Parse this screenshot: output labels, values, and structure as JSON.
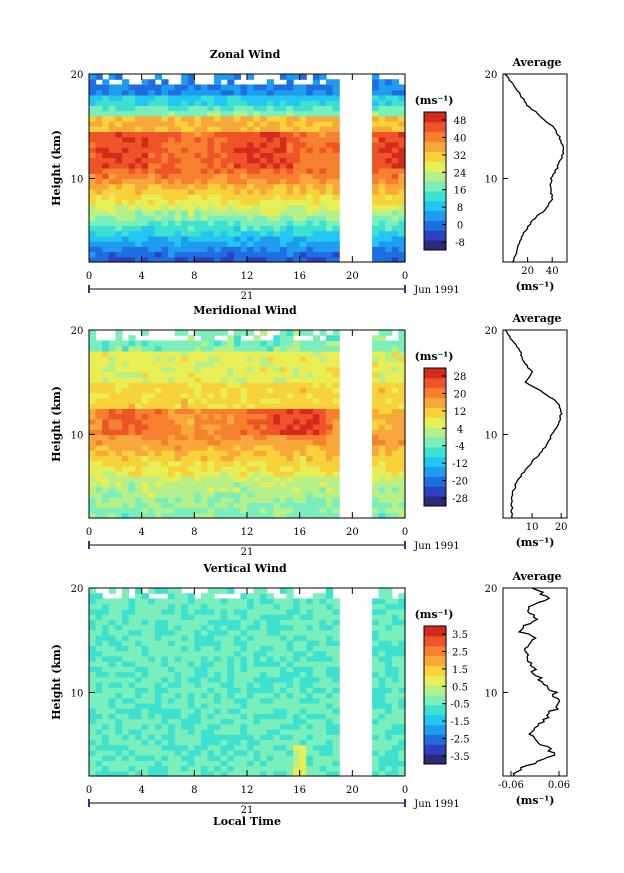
{
  "figure": {
    "date_label": "Jun 1991",
    "day_label": "21",
    "x_axis_label": "Local Time",
    "x_ticks": [
      "0",
      "4",
      "8",
      "12",
      "16",
      "20",
      "0"
    ],
    "y_axis_label": "Height (km)",
    "y_ticks": [
      "10",
      "20"
    ],
    "units": "(ms⁻¹)",
    "average_title": "Average"
  },
  "chart_data": [
    {
      "type": "heatmap",
      "title": "Zonal Wind",
      "ylabel": "Height (km)",
      "xlabel": "",
      "x_range_hours": [
        0,
        24
      ],
      "y_range_km": [
        2,
        20
      ],
      "data_gap_hours": [
        18.8,
        21.5
      ],
      "colorbar": {
        "label": "(ms⁻¹)",
        "ticks": [
          "48",
          "40",
          "32",
          "24",
          "16",
          "8",
          "0",
          "-8"
        ],
        "min": -12,
        "max": 52
      },
      "average_profile": {
        "title": "Average",
        "x_ticks": [
          "20",
          "40"
        ],
        "x_range": [
          0,
          52
        ],
        "height_km": [
          2,
          3,
          4,
          5,
          6,
          7,
          8,
          9,
          10,
          11,
          12,
          13,
          14,
          15,
          16,
          17,
          18,
          19,
          20
        ],
        "values": [
          8,
          11,
          14,
          18,
          24,
          34,
          40,
          39,
          39,
          44,
          48,
          49,
          46,
          40,
          30,
          20,
          14,
          8,
          2
        ]
      }
    },
    {
      "type": "heatmap",
      "title": "Meridional Wind",
      "ylabel": "Height (km)",
      "xlabel": "",
      "x_range_hours": [
        0,
        24
      ],
      "y_range_km": [
        2,
        20
      ],
      "data_gap_hours": [
        18.8,
        21.5
      ],
      "colorbar": {
        "label": "(ms⁻¹)",
        "ticks": [
          "28",
          "20",
          "12",
          "4",
          "-4",
          "-12",
          "-20",
          "-28"
        ],
        "min": -30,
        "max": 30
      },
      "average_profile": {
        "title": "Average",
        "x_ticks": [
          "10",
          "20"
        ],
        "x_range": [
          0,
          22
        ],
        "height_km": [
          2,
          3,
          4,
          5,
          6,
          7,
          8,
          9,
          10,
          11,
          12,
          13,
          14,
          15,
          16,
          17,
          18,
          19,
          20
        ],
        "values": [
          3,
          3,
          3,
          4,
          6,
          9,
          12,
          15,
          17,
          19,
          20,
          19,
          14,
          8,
          10,
          7,
          6,
          3,
          1
        ]
      }
    },
    {
      "type": "heatmap",
      "title": "Vertical Wind",
      "ylabel": "Height (km)",
      "xlabel": "Local Time",
      "x_range_hours": [
        0,
        24
      ],
      "y_range_km": [
        2,
        20
      ],
      "data_gap_hours": [
        18.8,
        21.5
      ],
      "colorbar": {
        "label": "(ms⁻¹)",
        "ticks": [
          "3.5",
          "2.5",
          "1.5",
          "0.5",
          "-0.5",
          "-1.5",
          "-2.5",
          "-3.5"
        ],
        "min": -4,
        "max": 4
      },
      "average_profile": {
        "title": "Average",
        "x_ticks": [
          "-0.06",
          "0.06"
        ],
        "x_range": [
          -0.08,
          0.08
        ],
        "height_km": [
          2,
          3,
          4,
          5,
          6,
          7,
          8,
          9,
          10,
          11,
          12,
          13,
          14,
          15,
          16,
          17,
          18,
          19,
          20
        ],
        "values": [
          -0.06,
          -0.02,
          0.05,
          0.02,
          -0.01,
          0.01,
          0.04,
          0.06,
          0.05,
          0.02,
          0.0,
          -0.02,
          -0.03,
          0.0,
          -0.04,
          0.01,
          -0.02,
          0.03,
          0.0
        ]
      }
    }
  ]
}
